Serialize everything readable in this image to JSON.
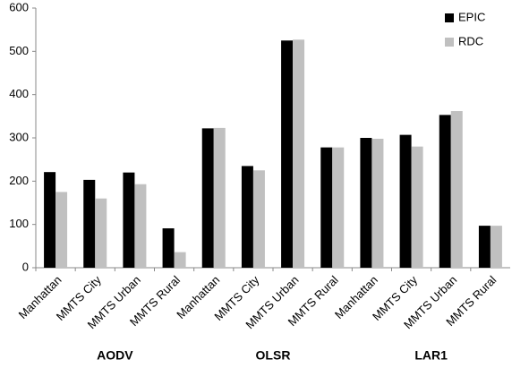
{
  "chart_data": {
    "type": "bar",
    "categories": [
      "Manhattan",
      "MMTS City",
      "MMTS Urban",
      "MMTS Rural",
      "Manhattan",
      "MMTS City",
      "MMTS Urban",
      "MMTS Rural",
      "Manhattan",
      "MMTS City",
      "MMTS Urban",
      "MMTS Rural"
    ],
    "groups": [
      "AODV",
      "OLSR",
      "LAR1"
    ],
    "series": [
      {
        "name": "EPIC",
        "color": "#000000",
        "values": [
          221,
          203,
          220,
          91,
          322,
          235,
          525,
          278,
          300,
          307,
          353,
          97
        ]
      },
      {
        "name": "RDC",
        "color": "#c0c0c0",
        "values": [
          175,
          160,
          193,
          36,
          323,
          225,
          527,
          278,
          298,
          280,
          362,
          97
        ]
      }
    ],
    "ylim": [
      0,
      600
    ],
    "yticks": [
      0,
      100,
      200,
      300,
      400,
      500,
      600
    ],
    "grid": false,
    "legend": "top-right"
  }
}
